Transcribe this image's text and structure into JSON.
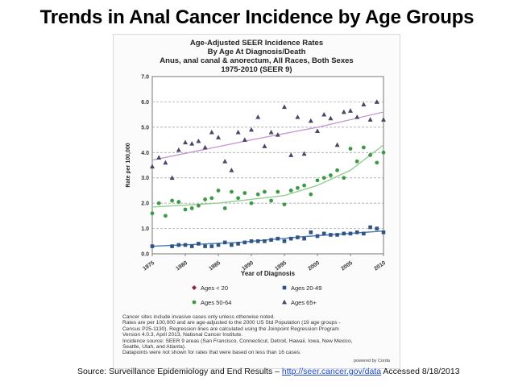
{
  "slide": {
    "title": "Trends in Anal Cancer Incidence by Age Groups",
    "source_prefix": "Source: Surveillance Epidemiology and End Results – ",
    "source_link": "http://seer.cancer.gov/data",
    "source_suffix": "  Accessed 8/18/2013"
  },
  "chart_data": {
    "type": "scatter",
    "title_lines": [
      "Age-Adjusted SEER Incidence Rates",
      "By Age At Diagnosis/Death",
      "Anus, anal canal & anorectum, All Races, Both Sexes",
      "1975-2010  (SEER 9)"
    ],
    "xlabel": "Year of Diagnosis",
    "ylabel": "Rate per 100,000",
    "xlim": [
      1975,
      2010
    ],
    "ylim": [
      0,
      7
    ],
    "x_ticks": [
      "1975",
      "1980",
      "1985",
      "1990",
      "1995",
      "2000",
      "2005",
      "2010"
    ],
    "y_ticks": [
      "0.0",
      "1.0",
      "2.0",
      "3.0",
      "4.0",
      "5.0",
      "6.0",
      "7.0"
    ],
    "grid": true,
    "x": [
      1975,
      1976,
      1977,
      1978,
      1979,
      1980,
      1981,
      1982,
      1983,
      1984,
      1985,
      1986,
      1987,
      1988,
      1989,
      1990,
      1991,
      1992,
      1993,
      1994,
      1995,
      1996,
      1997,
      1998,
      1999,
      2000,
      2001,
      2002,
      2003,
      2004,
      2005,
      2006,
      2007,
      2008,
      2009,
      2010
    ],
    "series": [
      {
        "name": "Ages < 20",
        "marker": "diamond",
        "color": "#8b2252",
        "values": []
      },
      {
        "name": "Ages 20-49",
        "marker": "square",
        "color": "#2f5487",
        "values": [
          0.3,
          null,
          null,
          0.3,
          0.35,
          0.35,
          0.3,
          0.4,
          0.3,
          0.3,
          0.35,
          0.45,
          0.35,
          0.4,
          0.45,
          0.5,
          0.5,
          0.5,
          0.55,
          0.6,
          0.5,
          0.6,
          0.65,
          0.6,
          0.85,
          0.7,
          0.8,
          0.75,
          0.75,
          0.8,
          0.8,
          0.85,
          0.8,
          1.05,
          1.0,
          0.85
        ]
      },
      {
        "name": "Ages 50-64",
        "marker": "circle",
        "color": "#3c9a45",
        "values": [
          1.6,
          2.0,
          1.5,
          2.1,
          2.05,
          1.75,
          1.8,
          1.9,
          2.15,
          2.2,
          2.5,
          1.8,
          2.45,
          2.2,
          2.4,
          2.0,
          2.35,
          2.45,
          2.1,
          2.45,
          1.95,
          2.5,
          2.6,
          2.7,
          2.35,
          2.9,
          3.0,
          3.1,
          3.3,
          3.0,
          4.15,
          3.65,
          4.2,
          3.9,
          3.6,
          4.0
        ]
      },
      {
        "name": "Ages 65+",
        "marker": "triangle",
        "color": "#4a4668",
        "values": [
          3.45,
          3.8,
          3.6,
          3.0,
          4.1,
          4.4,
          4.35,
          4.45,
          4.2,
          4.8,
          4.6,
          3.65,
          3.3,
          4.8,
          4.5,
          4.9,
          5.4,
          4.25,
          4.8,
          4.7,
          5.8,
          3.9,
          5.4,
          3.95,
          5.25,
          4.85,
          5.5,
          5.35,
          4.3,
          5.6,
          5.65,
          5.4,
          5.9,
          5.3,
          6.0,
          5.3
        ]
      }
    ],
    "trendlines": [
      {
        "series": "Ages 20-49",
        "color": "#4a78b0",
        "x": [
          1975,
          1988,
          1998,
          2010
        ],
        "y": [
          0.3,
          0.45,
          0.68,
          0.9
        ]
      },
      {
        "series": "Ages 50-64",
        "color": "#8fd08f",
        "x": [
          1975,
          1985,
          1995,
          2000,
          2005,
          2010
        ],
        "y": [
          1.85,
          2.0,
          2.3,
          2.7,
          3.3,
          4.3
        ]
      },
      {
        "series": "Ages 65+",
        "color": "#c89ad0",
        "x": [
          1975,
          1990,
          2000,
          2010
        ],
        "y": [
          3.7,
          4.5,
          5.0,
          5.6
        ]
      }
    ]
  },
  "notes": [
    "Cancer sites include invasive cases only unless otherwise noted.",
    "Rates are per 100,000 and are age-adjusted to the 2000 US Std Population (19 age groups -",
    "Census P25-1130). Regression lines are calculated using the Joinpoint Regression Program",
    "Version 4.0.3, April 2013, National Cancer Institute.",
    "Incidence source: SEER 9 areas (San Francisco, Connecticut, Detroit, Hawaii, Iowa, New Mexico,",
    "Seattle, Utah, and Atlanta).",
    "Datapoints were not shown for rates that were based on less than 16 cases."
  ],
  "powered_by": "powered by Corda"
}
